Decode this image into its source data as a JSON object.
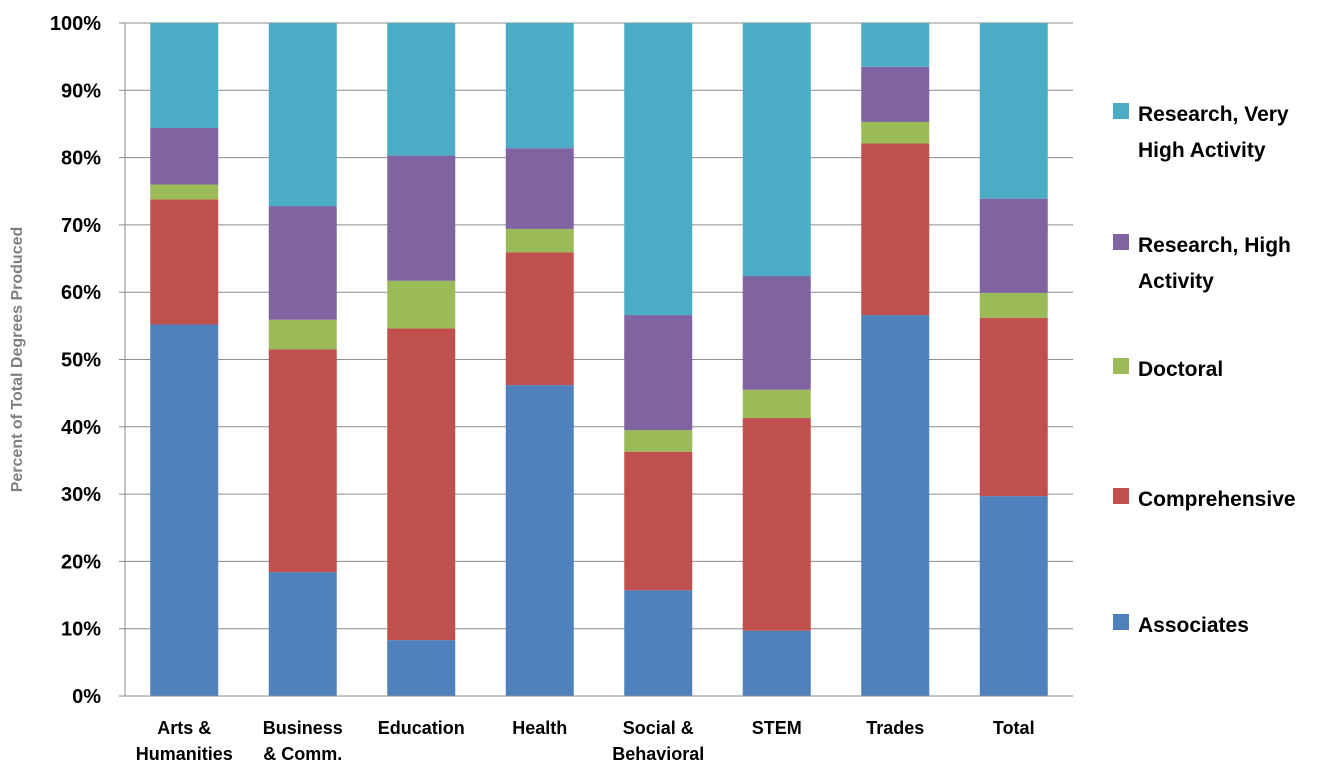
{
  "chart_data": {
    "type": "bar",
    "stacked": true,
    "title": "",
    "xlabel": "",
    "ylabel": "Percent of Total Degrees Produced",
    "ylim": [
      0,
      100
    ],
    "y_ticks": [
      "0%",
      "10%",
      "20%",
      "30%",
      "40%",
      "50%",
      "60%",
      "70%",
      "80%",
      "90%",
      "100%"
    ],
    "grid": "horizontal",
    "legend_position": "right",
    "categories": [
      [
        "Arts &",
        "Humanities"
      ],
      [
        "Business",
        "& Comm."
      ],
      [
        "Education"
      ],
      [
        "Health"
      ],
      [
        "Social &",
        "Behavioral"
      ],
      [
        "STEM"
      ],
      [
        "Trades"
      ],
      [
        "Total"
      ]
    ],
    "series": [
      {
        "name": "Associates",
        "color": "#4f81bd",
        "values": [
          55.2,
          18.4,
          8.3,
          46.2,
          15.7,
          9.7,
          56.6,
          29.7
        ]
      },
      {
        "name": "Comprehensive",
        "color": "#c0504d",
        "values": [
          18.6,
          33.1,
          46.3,
          19.7,
          20.6,
          31.6,
          25.5,
          26.5
        ]
      },
      {
        "name": "Doctoral",
        "color": "#9bbb59",
        "values": [
          2.2,
          4.4,
          7.1,
          3.5,
          3.2,
          4.2,
          3.2,
          3.7
        ]
      },
      {
        "name": "Research, High Activity",
        "color": "#8064a2",
        "values": [
          8.4,
          16.9,
          18.6,
          12.0,
          17.1,
          16.9,
          8.2,
          14.0
        ]
      },
      {
        "name": "Research, Very High Activity",
        "color": "#4bacc6",
        "values": [
          15.6,
          27.2,
          19.7,
          18.6,
          43.4,
          37.6,
          6.5,
          26.1
        ]
      }
    ],
    "legend": [
      {
        "series": 4,
        "lines": [
          "Research, Very",
          "High Activity"
        ]
      },
      {
        "series": 3,
        "lines": [
          "Research, High",
          "Activity"
        ]
      },
      {
        "series": 2,
        "lines": [
          "Doctoral"
        ]
      },
      {
        "series": 1,
        "lines": [
          "Comprehensive"
        ]
      },
      {
        "series": 0,
        "lines": [
          "Associates"
        ]
      }
    ]
  }
}
